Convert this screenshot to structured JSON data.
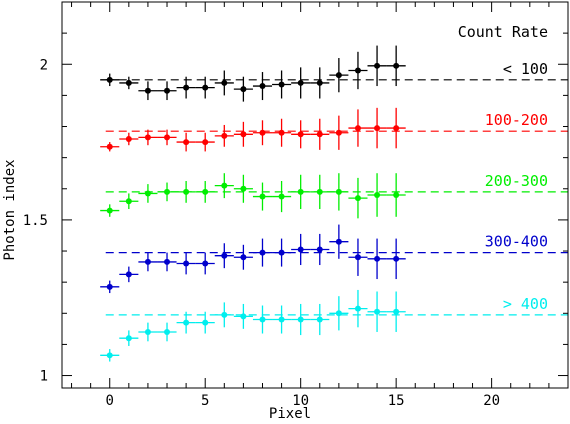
{
  "chart_data": {
    "type": "scatter",
    "xlabel": "Pixel",
    "ylabel": "Photon index",
    "xlim": [
      -2.5,
      24
    ],
    "ylim": [
      0.96,
      2.2
    ],
    "xticks_major": [
      0,
      5,
      10,
      15,
      20
    ],
    "xticks_minor_step": 1,
    "yticks_major": [
      1,
      1.5,
      2
    ],
    "yticks_labels": [
      "1",
      "1.5",
      "2"
    ],
    "yticks_minor_step": 0.1,
    "grid": false,
    "legend": {
      "title": "Count Rate",
      "placement": "right, each label above its reference line"
    },
    "x": [
      0,
      1,
      2,
      3,
      4,
      5,
      6,
      7,
      8,
      9,
      10,
      11,
      12,
      13,
      14,
      15
    ],
    "x_error": 0.5,
    "series": [
      {
        "name": "< 100",
        "color": "#000000",
        "reference_level": 1.95,
        "values": [
          1.95,
          1.94,
          1.915,
          1.915,
          1.925,
          1.925,
          1.94,
          1.92,
          1.93,
          1.935,
          1.94,
          1.94,
          1.965,
          1.98,
          1.995,
          1.995
        ],
        "errors": [
          0.02,
          0.02,
          0.03,
          0.03,
          0.035,
          0.035,
          0.04,
          0.04,
          0.045,
          0.045,
          0.05,
          0.05,
          0.055,
          0.06,
          0.065,
          0.065
        ]
      },
      {
        "name": "100-200",
        "color": "#ff0000",
        "reference_level": 1.785,
        "values": [
          1.735,
          1.76,
          1.765,
          1.765,
          1.75,
          1.75,
          1.77,
          1.775,
          1.78,
          1.78,
          1.775,
          1.775,
          1.78,
          1.795,
          1.795,
          1.795
        ],
        "errors": [
          0.015,
          0.02,
          0.025,
          0.025,
          0.03,
          0.03,
          0.035,
          0.04,
          0.04,
          0.045,
          0.045,
          0.05,
          0.055,
          0.06,
          0.065,
          0.065
        ]
      },
      {
        "name": "200-300",
        "color": "#00ee00",
        "reference_level": 1.59,
        "values": [
          1.53,
          1.56,
          1.585,
          1.59,
          1.59,
          1.59,
          1.61,
          1.6,
          1.575,
          1.575,
          1.59,
          1.59,
          1.59,
          1.57,
          1.58,
          1.58
        ],
        "errors": [
          0.02,
          0.025,
          0.03,
          0.03,
          0.035,
          0.035,
          0.04,
          0.045,
          0.045,
          0.05,
          0.055,
          0.055,
          0.06,
          0.065,
          0.07,
          0.07
        ]
      },
      {
        "name": "300-400",
        "color": "#0000cc",
        "reference_level": 1.395,
        "values": [
          1.285,
          1.325,
          1.365,
          1.365,
          1.36,
          1.36,
          1.385,
          1.38,
          1.395,
          1.395,
          1.405,
          1.405,
          1.43,
          1.38,
          1.375,
          1.375
        ],
        "errors": [
          0.02,
          0.025,
          0.03,
          0.03,
          0.035,
          0.035,
          0.04,
          0.04,
          0.045,
          0.045,
          0.05,
          0.05,
          0.055,
          0.06,
          0.065,
          0.065
        ]
      },
      {
        "name": "> 400",
        "color": "#00eeee",
        "reference_level": 1.195,
        "values": [
          1.065,
          1.12,
          1.14,
          1.14,
          1.17,
          1.17,
          1.195,
          1.19,
          1.18,
          1.18,
          1.18,
          1.18,
          1.2,
          1.215,
          1.205,
          1.205
        ],
        "errors": [
          0.02,
          0.025,
          0.03,
          0.03,
          0.035,
          0.035,
          0.04,
          0.04,
          0.045,
          0.045,
          0.05,
          0.05,
          0.055,
          0.06,
          0.065,
          0.065
        ]
      }
    ]
  }
}
